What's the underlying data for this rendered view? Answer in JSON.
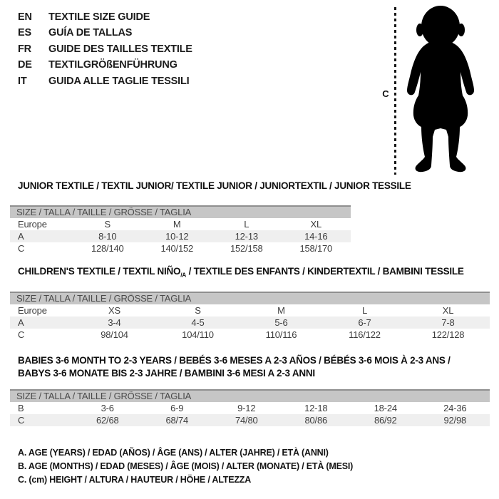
{
  "colors": {
    "background": "#ffffff",
    "band_bg": "#c6c6c6",
    "band_border": "#8f8f8f",
    "stripe_row": "#efefef",
    "text": "#3d3d3d",
    "heading_text": "#101010",
    "silhouette": "#000000"
  },
  "languages": [
    {
      "code": "EN",
      "text": "TEXTILE SIZE GUIDE"
    },
    {
      "code": "ES",
      "text": "GUÍA DE TALLAS"
    },
    {
      "code": "FR",
      "text": "GUIDE DES TAILLES TEXTILE"
    },
    {
      "code": "DE",
      "text": "TEXTILGRÖßENFÜHRUNG"
    },
    {
      "code": "IT",
      "text": "GUIDA ALLE TAGLIE TESSILI"
    }
  ],
  "figure": {
    "label": "C",
    "icon": "baby-silhouette-icon"
  },
  "sections": [
    {
      "id": "junior",
      "heading_lines": [
        [
          {
            "t": "JUNIOR TEXTILE / TEXTIL JUNIOR/ TEXTILE JUNIOR / JUNIORTEXTIL / JUNIOR TESSILE"
          }
        ]
      ],
      "size_header": "SIZE / TALLA / TAILLE / GRÖSSE / TAGLIA",
      "rows": [
        {
          "label": "Europe",
          "values": [
            "S",
            "M",
            "L",
            "XL"
          ],
          "shaded": false
        },
        {
          "label": "A",
          "values": [
            "8-10",
            "10-12",
            "12-13",
            "14-16"
          ],
          "shaded": true
        },
        {
          "label": "C",
          "values": [
            "128/140",
            "140/152",
            "152/158",
            "158/170"
          ],
          "shaded": false
        }
      ]
    },
    {
      "id": "children",
      "heading_lines": [
        [
          {
            "t": "CHILDREN'S TEXTILE / TEXTIL NIÑO"
          },
          {
            "t": "/A",
            "sub": true
          },
          {
            "t": " / TEXTILE DES ENFANTS / KINDERTEXTIL / BAMBINI TESSILE"
          }
        ]
      ],
      "size_header": "SIZE / TALLA / TAILLE / GRÖSSE / TAGLIA",
      "rows": [
        {
          "label": "Europe",
          "values": [
            "XS",
            "S",
            "M",
            "L",
            "XL"
          ],
          "shaded": false
        },
        {
          "label": "A",
          "values": [
            "3-4",
            "4-5",
            "5-6",
            "6-7",
            "7-8"
          ],
          "shaded": true
        },
        {
          "label": "C",
          "values": [
            "98/104",
            "104/110",
            "110/116",
            "116/122",
            "122/128"
          ],
          "shaded": false
        }
      ]
    },
    {
      "id": "babies",
      "heading_lines": [
        [
          {
            "t": "BABIES 3-6 MONTH TO 2-3 YEARS / BEBÉS 3-6 MESES A 2-3 AÑOS / BÉBÉS 3-6 MOIS À 2-3 ANS /"
          }
        ],
        [
          {
            "t": "BABYS 3-6 MONATE BIS 2-3 JAHRE / BAMBINI 3-6 MESI A 2-3 ANNI"
          }
        ]
      ],
      "size_header": "SIZE / TALLA / TAILLE / GRÖSSE / TAGLIA",
      "rows": [
        {
          "label": "B",
          "values": [
            "3-6",
            "6-9",
            "9-12",
            "12-18",
            "18-24",
            "24-36"
          ],
          "shaded": false
        },
        {
          "label": "C",
          "values": [
            "62/68",
            "68/74",
            "74/80",
            "80/86",
            "86/92",
            "92/98"
          ],
          "shaded": true
        }
      ]
    }
  ],
  "notes": [
    "A. AGE (YEARS) / EDAD (AÑOS) / ÂGE (ANS) / ALTER (JAHRE) / ETÀ (ANNI)",
    "B. AGE (MONTHS) / EDAD (MESES) / ÂGE (MOIS) / ALTER (MONATE) / ETÀ (MESI)",
    "C. (cm) HEIGHT / ALTURA / HAUTEUR / HÖHE / ALTEZZA"
  ]
}
